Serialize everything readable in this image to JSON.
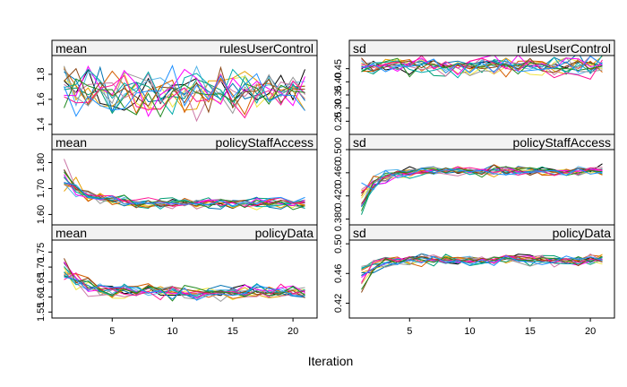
{
  "chart_data": {
    "type": "line",
    "xlabel": "Iteration",
    "x_ticks": [
      5,
      10,
      15,
      20
    ],
    "xlim": [
      0,
      22
    ],
    "n_chains": 15,
    "palette": [
      "#000000",
      "#E69F00",
      "#56B4E9",
      "#009E73",
      "#F0E442",
      "#0072B2",
      "#D55E00",
      "#CC79A7",
      "#999999",
      "#FF00FF",
      "#00AAAA",
      "#8B4513",
      "#FF1493",
      "#228B22",
      "#1E90FF"
    ],
    "panels": [
      {
        "stat": "mean",
        "variable": "rulesUserControl",
        "ylim": [
          1.32,
          1.95
        ],
        "y_ticks": [
          1.4,
          1.6,
          1.8
        ],
        "y_tick_labels": [
          "1.4",
          "1.6",
          "1.8"
        ],
        "center": [
          1.66,
          1.66,
          1.66,
          1.66,
          1.66,
          1.66,
          1.66,
          1.66,
          1.66,
          1.66,
          1.66,
          1.66,
          1.66,
          1.66,
          1.66,
          1.66,
          1.66,
          1.66,
          1.66,
          1.66,
          1.66
        ],
        "spread": [
          0.12,
          0.12,
          0.12,
          0.12,
          0.12,
          0.12,
          0.12,
          0.12,
          0.12,
          0.12,
          0.12,
          0.12,
          0.12,
          0.12,
          0.12,
          0.12,
          0.12,
          0.12,
          0.12,
          0.12,
          0.12
        ]
      },
      {
        "stat": "sd",
        "variable": "rulesUserControl",
        "ylim": [
          0.2,
          0.5
        ],
        "y_ticks": [
          0.25,
          0.3,
          0.35,
          0.4,
          0.45
        ],
        "y_tick_labels": [
          "0.25",
          "0.30",
          "0.35",
          "0.40",
          "0.45"
        ],
        "center": [
          0.46,
          0.46,
          0.46,
          0.46,
          0.46,
          0.46,
          0.46,
          0.46,
          0.46,
          0.46,
          0.46,
          0.46,
          0.46,
          0.46,
          0.46,
          0.46,
          0.46,
          0.46,
          0.46,
          0.46,
          0.46
        ],
        "spread": [
          0.025,
          0.025,
          0.025,
          0.025,
          0.025,
          0.025,
          0.025,
          0.025,
          0.025,
          0.025,
          0.025,
          0.025,
          0.025,
          0.025,
          0.025,
          0.025,
          0.025,
          0.025,
          0.025,
          0.025,
          0.025
        ]
      },
      {
        "stat": "mean",
        "variable": "policyStaffAccess",
        "ylim": [
          1.56,
          1.85
        ],
        "y_ticks": [
          1.6,
          1.7,
          1.8
        ],
        "y_tick_labels": [
          "1.60",
          "1.70",
          "1.80"
        ],
        "center": [
          1.76,
          1.7,
          1.67,
          1.66,
          1.655,
          1.65,
          1.645,
          1.645,
          1.64,
          1.645,
          1.645,
          1.645,
          1.645,
          1.645,
          1.645,
          1.645,
          1.645,
          1.645,
          1.645,
          1.645,
          1.645
        ],
        "spread": [
          0.04,
          0.025,
          0.02,
          0.015,
          0.015,
          0.015,
          0.015,
          0.015,
          0.015,
          0.015,
          0.015,
          0.015,
          0.015,
          0.015,
          0.015,
          0.015,
          0.015,
          0.015,
          0.015,
          0.015,
          0.015
        ]
      },
      {
        "stat": "sd",
        "variable": "policyStaffAccess",
        "ylim": [
          0.37,
          0.5
        ],
        "y_ticks": [
          0.38,
          0.42,
          0.46,
          0.5
        ],
        "y_tick_labels": [
          "0.380",
          "0.420",
          "0.460",
          "0.500"
        ],
        "center": [
          0.41,
          0.44,
          0.455,
          0.46,
          0.46,
          0.462,
          0.462,
          0.462,
          0.463,
          0.463,
          0.463,
          0.463,
          0.463,
          0.463,
          0.463,
          0.463,
          0.463,
          0.463,
          0.463,
          0.463,
          0.463
        ],
        "spread": [
          0.02,
          0.012,
          0.008,
          0.006,
          0.006,
          0.006,
          0.006,
          0.006,
          0.006,
          0.006,
          0.006,
          0.006,
          0.006,
          0.006,
          0.006,
          0.006,
          0.006,
          0.006,
          0.006,
          0.006,
          0.006
        ]
      },
      {
        "stat": "mean",
        "variable": "policyData",
        "ylim": [
          1.53,
          1.79
        ],
        "y_ticks": [
          1.55,
          1.6,
          1.65,
          1.7,
          1.75
        ],
        "y_tick_labels": [
          "1.55",
          "1.60",
          "1.65",
          "1.70",
          "1.75"
        ],
        "center": [
          1.69,
          1.65,
          1.635,
          1.625,
          1.62,
          1.62,
          1.62,
          1.62,
          1.615,
          1.615,
          1.615,
          1.615,
          1.615,
          1.615,
          1.615,
          1.615,
          1.615,
          1.615,
          1.615,
          1.615,
          1.615
        ],
        "spread": [
          0.035,
          0.022,
          0.018,
          0.016,
          0.016,
          0.016,
          0.016,
          0.016,
          0.016,
          0.016,
          0.016,
          0.016,
          0.016,
          0.016,
          0.016,
          0.016,
          0.016,
          0.016,
          0.016,
          0.016,
          0.016
        ]
      },
      {
        "stat": "sd",
        "variable": "policyData",
        "ylim": [
          0.4,
          0.505
        ],
        "y_ticks": [
          0.42,
          0.46,
          0.5
        ],
        "y_tick_labels": [
          "0.42",
          "0.46",
          "0.50"
        ],
        "center": [
          0.455,
          0.47,
          0.475,
          0.477,
          0.478,
          0.478,
          0.478,
          0.478,
          0.478,
          0.478,
          0.478,
          0.478,
          0.478,
          0.478,
          0.478,
          0.478,
          0.478,
          0.478,
          0.478,
          0.478,
          0.478
        ],
        "spread": [
          0.015,
          0.008,
          0.006,
          0.005,
          0.005,
          0.005,
          0.005,
          0.005,
          0.005,
          0.005,
          0.005,
          0.005,
          0.005,
          0.005,
          0.005,
          0.005,
          0.005,
          0.005,
          0.005,
          0.005,
          0.005
        ]
      }
    ]
  }
}
